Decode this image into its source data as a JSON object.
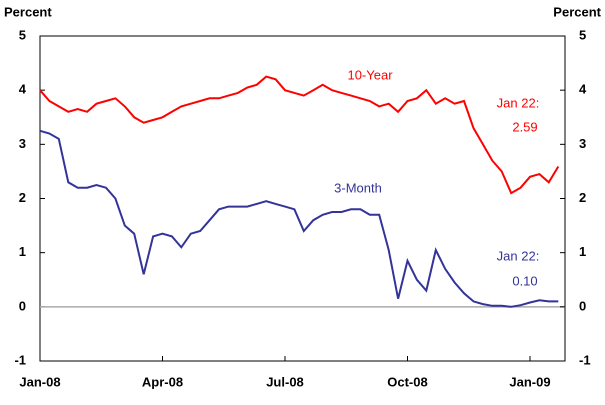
{
  "chart_data": {
    "type": "line",
    "ylabel": "Percent",
    "y2label": "Percent",
    "categories": [
      "Jan-08",
      null,
      null,
      null,
      null,
      null,
      null,
      null,
      null,
      null,
      null,
      null,
      null,
      "Apr-08",
      null,
      null,
      null,
      null,
      null,
      null,
      null,
      null,
      null,
      null,
      null,
      null,
      "Jul-08",
      null,
      null,
      null,
      null,
      null,
      null,
      null,
      null,
      null,
      null,
      null,
      null,
      "Oct-08",
      null,
      null,
      null,
      null,
      null,
      null,
      null,
      null,
      null,
      null,
      null,
      null,
      "Jan-09",
      null,
      null,
      null
    ],
    "series": [
      {
        "name": "10-Year",
        "color": "#ff0000",
        "values": [
          4.0,
          3.8,
          3.7,
          3.6,
          3.65,
          3.6,
          3.75,
          3.8,
          3.85,
          3.7,
          3.5,
          3.4,
          3.45,
          3.5,
          3.6,
          3.7,
          3.75,
          3.8,
          3.85,
          3.85,
          3.9,
          3.95,
          4.05,
          4.1,
          4.25,
          4.2,
          4.0,
          3.95,
          3.9,
          4.0,
          4.1,
          4.0,
          3.95,
          3.9,
          3.85,
          3.8,
          3.7,
          3.75,
          3.6,
          3.8,
          3.85,
          4.0,
          3.75,
          3.85,
          3.75,
          3.8,
          3.3,
          3.0,
          2.7,
          2.5,
          2.1,
          2.2,
          2.4,
          2.45,
          2.3,
          2.59
        ]
      },
      {
        "name": "3-Month",
        "color": "#333399",
        "values": [
          3.25,
          3.2,
          3.1,
          2.3,
          2.2,
          2.2,
          2.25,
          2.2,
          2.0,
          1.5,
          1.35,
          0.6,
          1.3,
          1.35,
          1.3,
          1.1,
          1.35,
          1.4,
          1.6,
          1.8,
          1.85,
          1.85,
          1.85,
          1.9,
          1.95,
          1.9,
          1.85,
          1.8,
          1.4,
          1.6,
          1.7,
          1.75,
          1.75,
          1.8,
          1.8,
          1.7,
          1.7,
          1.05,
          0.15,
          0.85,
          0.5,
          0.3,
          1.05,
          0.7,
          0.45,
          0.25,
          0.1,
          0.05,
          0.02,
          0.02,
          0.0,
          0.03,
          0.08,
          0.12,
          0.1,
          0.1
        ]
      }
    ],
    "annotations": [
      "Jan 22:",
      "2.59",
      "Jan 22:",
      "0.10"
    ],
    "ylim": [
      -1,
      5
    ],
    "yticks": [
      -1,
      0,
      1,
      2,
      3,
      4,
      5
    ],
    "y2lim": [
      -1,
      5
    ],
    "y2ticks": [
      -1,
      0,
      1,
      2,
      3,
      4,
      5
    ],
    "zero_line": true
  }
}
